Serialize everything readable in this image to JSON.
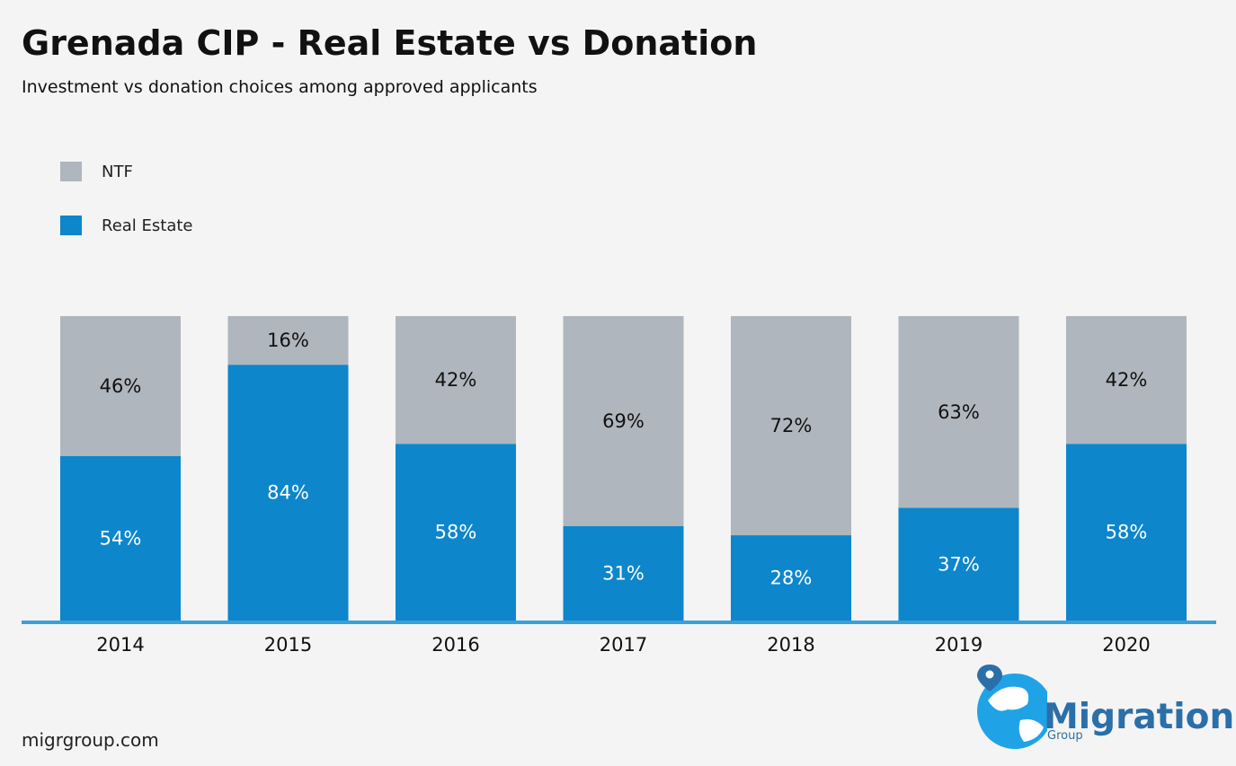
{
  "header": {
    "title": "Grenada CIP - Real Estate vs Donation",
    "subtitle": "Investment vs donation choices among approved applicants"
  },
  "footer": {
    "url": "migrgroup.com",
    "logo_word": "Migration",
    "logo_sub": "Group"
  },
  "colors": {
    "ntf": "#b0b6bd",
    "real_estate": "#0d86cc",
    "axis_line": "#3aa0d8",
    "background": "#f4f4f4",
    "logo_blue": "#2a6fa8"
  },
  "chart_data": {
    "type": "bar",
    "stacked": true,
    "percent_stacked": true,
    "categories": [
      "2014",
      "2015",
      "2016",
      "2017",
      "2018",
      "2019",
      "2020"
    ],
    "series": [
      {
        "name": "Real Estate",
        "values": [
          54,
          84,
          58,
          31,
          28,
          37,
          58
        ],
        "labels": [
          "54%",
          "84%",
          "58%",
          "31%",
          "28%",
          "37%",
          "58%"
        ]
      },
      {
        "name": "NTF",
        "values": [
          46,
          16,
          42,
          69,
          72,
          63,
          42
        ],
        "labels": [
          "46%",
          "16%",
          "42%",
          "69%",
          "72%",
          "63%",
          "42%"
        ]
      }
    ],
    "title": "Grenada CIP - Real Estate vs Donation",
    "subtitle": "Investment vs donation choices among approved applicants",
    "ylim": [
      0,
      100
    ],
    "grid": false,
    "legend": {
      "placement": "top-left",
      "entries": [
        "NTF",
        "Real Estate"
      ]
    }
  }
}
